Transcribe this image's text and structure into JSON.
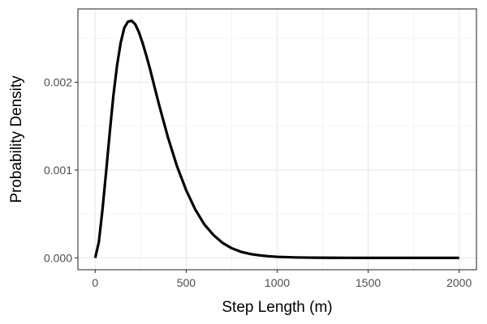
{
  "chart_data": {
    "type": "line",
    "title": "",
    "xlabel": "Step Length (m)",
    "ylabel": "Probability Density",
    "xlim": [
      -95,
      2095
    ],
    "ylim": [
      -0.000135,
      0.002835
    ],
    "x_ticks": [
      0,
      500,
      1000,
      1500,
      2000
    ],
    "x_tick_labels": [
      "0",
      "500",
      "1000",
      "1500",
      "2000"
    ],
    "y_ticks": [
      0.0,
      0.001,
      0.002
    ],
    "y_tick_labels": [
      "0.000",
      "0.001",
      "0.002"
    ],
    "x_minor_ticks": [
      250,
      750,
      1250,
      1750
    ],
    "y_minor_ticks": [
      0.0005,
      0.0015,
      0.0025
    ],
    "grid": true,
    "legend": "none",
    "series": [
      {
        "line_color": "#000000",
        "x": [
          0,
          20,
          40,
          60,
          80,
          100,
          120,
          140,
          160,
          180,
          200,
          220,
          240,
          260,
          280,
          300,
          350,
          400,
          450,
          500,
          550,
          600,
          650,
          700,
          750,
          800,
          850,
          900,
          950,
          1000,
          1100,
          1200,
          1300,
          1400,
          1500,
          1600,
          1700,
          1800,
          1900,
          2000
        ],
        "y": [
          0.0,
          0.00018,
          0.00055,
          0.00098,
          0.00143,
          0.00185,
          0.00219,
          0.00245,
          0.00262,
          0.00269,
          0.0027,
          0.00266,
          0.00257,
          0.00245,
          0.00231,
          0.00216,
          0.00175,
          0.00137,
          0.00104,
          0.00077,
          0.00055,
          0.00038,
          0.00026,
          0.00017,
          0.00011,
          7e-05,
          4.5e-05,
          3e-05,
          1.9e-05,
          1.2e-05,
          5e-06,
          2e-06,
          8e-07,
          3e-07,
          1e-07,
          0.0,
          0.0,
          0.0,
          0.0,
          0.0
        ]
      }
    ]
  }
}
